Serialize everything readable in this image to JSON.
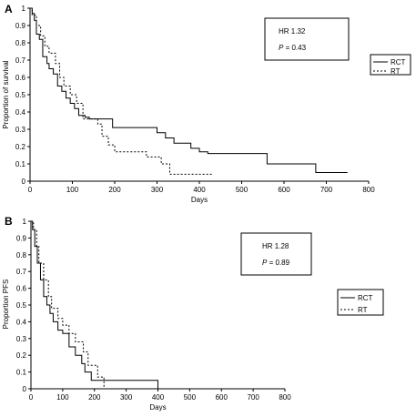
{
  "chart_data": [
    {
      "type": "line",
      "panel_label": "A",
      "xlabel": "Days",
      "ylabel": "Proportion of survival",
      "xlim": [
        0,
        800
      ],
      "ylim": [
        0,
        1
      ],
      "x_ticks": [
        0,
        100,
        200,
        300,
        400,
        500,
        600,
        700,
        800
      ],
      "y_ticks": [
        0,
        0.1,
        0.2,
        0.3,
        0.4,
        0.5,
        0.6,
        0.7,
        0.8,
        0.9,
        1
      ],
      "grid": false,
      "legend_position": "right",
      "stats": {
        "hr_text": "HR 1.32",
        "p_label": "P",
        "p_text": " = 0.43"
      },
      "series": [
        {
          "name": "RCT",
          "style": "solid",
          "x": [
            0,
            5,
            10,
            15,
            22,
            30,
            40,
            45,
            55,
            65,
            75,
            85,
            95,
            105,
            115,
            130,
            140,
            195,
            240,
            265,
            300,
            320,
            340,
            380,
            400,
            420,
            560,
            675,
            750
          ],
          "y": [
            1,
            0.97,
            0.93,
            0.85,
            0.82,
            0.72,
            0.68,
            0.65,
            0.62,
            0.55,
            0.52,
            0.48,
            0.45,
            0.42,
            0.38,
            0.37,
            0.36,
            0.31,
            0.31,
            0.31,
            0.28,
            0.25,
            0.22,
            0.19,
            0.17,
            0.16,
            0.1,
            0.05,
            0.05
          ]
        },
        {
          "name": "RT",
          "style": "dotted",
          "x": [
            0,
            5,
            15,
            25,
            35,
            45,
            60,
            70,
            80,
            95,
            110,
            125,
            160,
            170,
            185,
            200,
            275,
            310,
            330,
            430
          ],
          "y": [
            1,
            0.96,
            0.9,
            0.84,
            0.78,
            0.74,
            0.68,
            0.6,
            0.55,
            0.5,
            0.45,
            0.36,
            0.33,
            0.26,
            0.21,
            0.17,
            0.14,
            0.1,
            0.04,
            0.04
          ]
        }
      ]
    },
    {
      "type": "line",
      "panel_label": "B",
      "xlabel": "Days",
      "ylabel": "Proportion PFS",
      "xlim": [
        0,
        800
      ],
      "ylim": [
        0,
        1
      ],
      "x_ticks": [
        0,
        100,
        200,
        300,
        400,
        500,
        600,
        700,
        800
      ],
      "y_ticks": [
        0,
        0.1,
        0.2,
        0.3,
        0.4,
        0.5,
        0.6,
        0.7,
        0.8,
        0.9,
        1
      ],
      "grid": false,
      "legend_position": "right",
      "stats": {
        "hr_text": "HR  1.28",
        "p_label": "P",
        "p_text": " = 0.89"
      },
      "series": [
        {
          "name": "RCT",
          "style": "solid",
          "x": [
            0,
            5,
            12,
            20,
            30,
            40,
            50,
            60,
            70,
            85,
            100,
            120,
            140,
            160,
            170,
            180,
            190,
            210,
            230,
            400
          ],
          "y": [
            1,
            0.95,
            0.85,
            0.75,
            0.65,
            0.55,
            0.5,
            0.45,
            0.4,
            0.35,
            0.33,
            0.25,
            0.2,
            0.15,
            0.1,
            0.1,
            0.05,
            0.05,
            0.05,
            0
          ]
        },
        {
          "name": "RT",
          "style": "dotted",
          "x": [
            0,
            8,
            18,
            25,
            40,
            55,
            65,
            85,
            100,
            120,
            140,
            165,
            180,
            210,
            230
          ],
          "y": [
            1,
            0.95,
            0.85,
            0.75,
            0.65,
            0.55,
            0.48,
            0.42,
            0.38,
            0.33,
            0.28,
            0.22,
            0.14,
            0.07,
            0
          ]
        }
      ]
    }
  ]
}
